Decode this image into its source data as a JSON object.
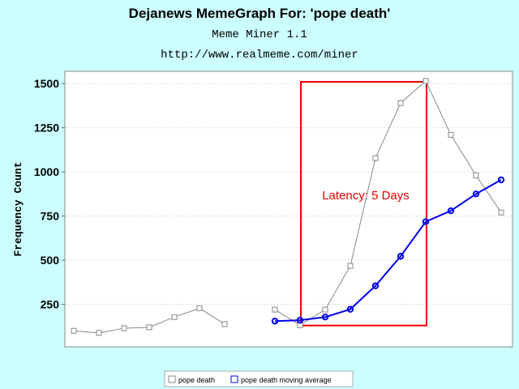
{
  "chart_data": {
    "type": "line",
    "title": "Dejanews MemeGraph For: 'pope death'",
    "subtitle": "Meme Miner 1.1",
    "url": "http://www.realmeme.com/miner",
    "xlabel": "",
    "ylabel": "Frequency Count",
    "ylim": [
      0,
      1580
    ],
    "yticks": [
      250,
      500,
      750,
      1000,
      1250,
      1500
    ],
    "ytick_labels": [
      "250",
      "500",
      "750",
      "1000",
      "1250",
      "1500"
    ],
    "grid": true,
    "legend_position": "bottom-center",
    "series": [
      {
        "name": "pope death",
        "color": "#888888",
        "marker": "square",
        "x": [
          0,
          1,
          2,
          3,
          4,
          5,
          6,
          7,
          8,
          9,
          10,
          11,
          12,
          13,
          14,
          15,
          16,
          17
        ],
        "values": [
          100,
          88,
          115,
          120,
          178,
          228,
          138,
          null,
          220,
          132,
          220,
          468,
          1078,
          1390,
          1515,
          1210,
          980,
          770
        ]
      },
      {
        "name": "pope death moving average",
        "color": "#0000ee",
        "marker": "circle",
        "x": [
          8,
          9,
          10,
          11,
          12,
          13,
          14,
          15,
          16,
          17
        ],
        "values": [
          155,
          160,
          178,
          222,
          355,
          522,
          718,
          780,
          875,
          955
        ]
      }
    ],
    "annotation": {
      "text": "Latency: 5 Days",
      "color": "#ee0000",
      "box": {
        "x0": 9,
        "x1": 14,
        "y0": 130,
        "y1": 1510
      }
    }
  }
}
